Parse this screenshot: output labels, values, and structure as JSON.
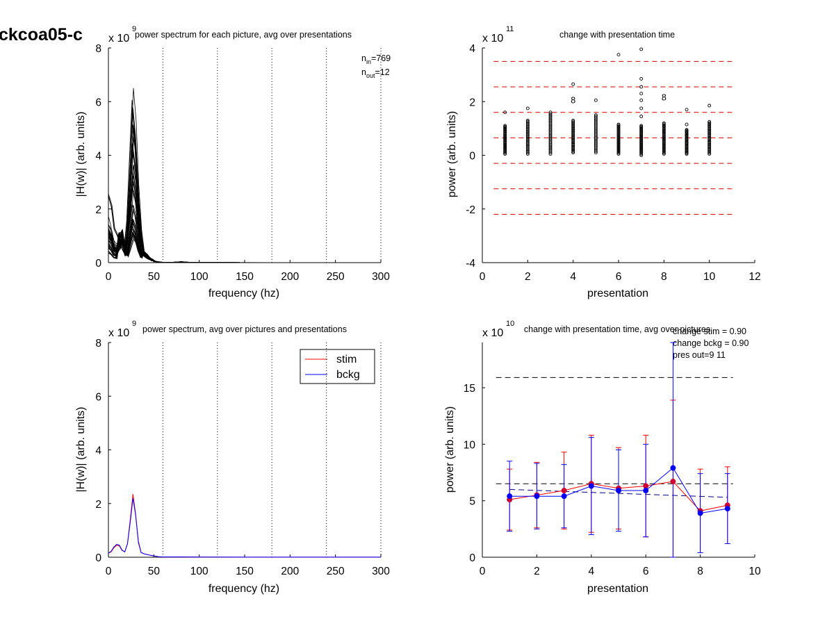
{
  "figure_label": "ckcoa05-c",
  "chart_data": [
    {
      "id": "p1",
      "type": "line",
      "title": "power spectrum for each picture, avg over presentations",
      "xlabel": "frequency (hz)",
      "ylabel": "|H(w)| (arb. units)",
      "y_exponent": "9",
      "xlim": [
        0,
        300
      ],
      "ylim": [
        0,
        8
      ],
      "xticks": [
        "0",
        "50",
        "100",
        "150",
        "200",
        "250",
        "300"
      ],
      "yticks": [
        "0",
        "2",
        "4",
        "6",
        "8"
      ],
      "vlines_x": [
        60,
        120,
        180,
        240,
        300
      ],
      "annotations": {
        "n_in": "769",
        "n_out": "12"
      },
      "curves": {
        "count": 40,
        "base_x": [
          0,
          3,
          6,
          9,
          12,
          15,
          18,
          21,
          24,
          27,
          30,
          33,
          36,
          39,
          42,
          45,
          48,
          51,
          54,
          57,
          60,
          65,
          70,
          75,
          80,
          90,
          100,
          150,
          200,
          250,
          300
        ],
        "base_y": [
          1.2,
          1.0,
          0.6,
          0.5,
          0.8,
          0.9,
          0.4,
          0.8,
          2.0,
          3.2,
          2.6,
          1.4,
          0.6,
          0.35,
          0.25,
          0.15,
          0.1,
          0.05,
          0.03,
          0.02,
          0.01,
          0.01,
          0.01,
          0.02,
          0.03,
          0.01,
          0.005,
          0.003,
          0.002,
          0.001,
          0.001
        ],
        "peak_max": 6.2,
        "low_max": 2.8
      }
    },
    {
      "id": "p2",
      "type": "scatter",
      "title": "change with presentation time",
      "xlabel": "presentation",
      "ylabel": "power (arb. units)",
      "y_exponent": "11",
      "xlim": [
        0,
        12
      ],
      "ylim": [
        -4,
        4
      ],
      "xticks": [
        "0",
        "2",
        "4",
        "6",
        "8",
        "10",
        "12"
      ],
      "yticks": [
        "-4",
        "-2",
        "0",
        "2",
        "4"
      ],
      "hlines_y": [
        3.5,
        2.55,
        1.6,
        0.65,
        -0.3,
        -1.25,
        -2.2
      ],
      "columns": [
        {
          "x": 1,
          "low": 0.05,
          "high": 1.1,
          "outliers": [
            1.6
          ]
        },
        {
          "x": 2,
          "low": 0.05,
          "high": 1.3,
          "outliers": [
            1.75
          ]
        },
        {
          "x": 3,
          "low": 0.05,
          "high": 1.6,
          "outliers": []
        },
        {
          "x": 4,
          "low": 0.1,
          "high": 1.3,
          "outliers": [
            2.65
          ]
        },
        {
          "x": 5,
          "low": 0.1,
          "high": 1.5,
          "outliers": [
            2.05
          ]
        },
        {
          "x": 6,
          "low": 0.05,
          "high": 1.15,
          "outliers": [
            3.75
          ]
        },
        {
          "x": 7,
          "low": 0.05,
          "high": 1.1,
          "outliers": [
            1.45,
            1.75,
            2.05,
            2.3,
            2.55,
            2.85,
            3.95,
            0.0
          ]
        },
        {
          "x": 8,
          "low": 0.05,
          "high": 1.2,
          "outliers": []
        },
        {
          "x": 9,
          "low": 0.05,
          "high": 0.95,
          "outliers": [
            1.15,
            1.7
          ]
        },
        {
          "x": 10,
          "low": 0.05,
          "high": 1.25,
          "outliers": [
            1.85
          ]
        }
      ],
      "text_marks": [
        {
          "x": 4,
          "y": 2.05,
          "text": "8"
        },
        {
          "x": 8,
          "y": 2.15,
          "text": "8"
        }
      ]
    },
    {
      "id": "p3",
      "type": "line",
      "title": "power spectrum, avg over pictures and presentations",
      "xlabel": "frequency (hz)",
      "ylabel": "|H(w)| (arb. units)",
      "y_exponent": "9",
      "xlim": [
        0,
        300
      ],
      "ylim": [
        0,
        8
      ],
      "xticks": [
        "0",
        "50",
        "100",
        "150",
        "200",
        "250",
        "300"
      ],
      "yticks": [
        "0",
        "2",
        "4",
        "6",
        "8"
      ],
      "vlines_x": [
        60,
        120,
        180,
        240,
        300
      ],
      "legend": {
        "position": "top-right",
        "entries": [
          "stim",
          "bckg"
        ]
      },
      "series": [
        {
          "name": "stim",
          "color": "#ff0000",
          "x": [
            0,
            3,
            6,
            9,
            12,
            15,
            18,
            21,
            24,
            27,
            30,
            33,
            36,
            40,
            45,
            50,
            55,
            60,
            80,
            100,
            150,
            200,
            250,
            300
          ],
          "y": [
            0.15,
            0.2,
            0.35,
            0.45,
            0.42,
            0.25,
            0.2,
            0.5,
            1.4,
            2.35,
            1.6,
            0.6,
            0.18,
            0.12,
            0.08,
            0.05,
            0.02,
            0.01,
            0.01,
            0.005,
            0.003,
            0.002,
            0.002,
            0.002
          ]
        },
        {
          "name": "bckg",
          "color": "#0000ff",
          "x": [
            0,
            3,
            6,
            9,
            12,
            15,
            18,
            21,
            24,
            27,
            30,
            33,
            36,
            40,
            45,
            50,
            55,
            60,
            80,
            100,
            150,
            200,
            250,
            300
          ],
          "y": [
            0.15,
            0.22,
            0.38,
            0.48,
            0.45,
            0.27,
            0.2,
            0.5,
            1.3,
            2.2,
            1.55,
            0.55,
            0.17,
            0.12,
            0.08,
            0.05,
            0.02,
            0.01,
            0.01,
            0.005,
            0.003,
            0.002,
            0.002,
            0.002
          ]
        }
      ]
    },
    {
      "id": "p4",
      "type": "line",
      "title": "change with presentation time, avg over pictures",
      "xlabel": "presentation",
      "ylabel": "power (arb. units)",
      "y_exponent": "10",
      "xlim": [
        0,
        10
      ],
      "ylim": [
        0,
        19
      ],
      "xticks": [
        "0",
        "2",
        "4",
        "6",
        "8",
        "10"
      ],
      "yticks": [
        "0",
        "5",
        "10",
        "15"
      ],
      "annotations": [
        "change stim = 0.90",
        "change bckg = 0.90",
        "pres out=9 11"
      ],
      "hlines": [
        {
          "y": 15.9,
          "x1": 0.5,
          "x2": 9.2,
          "color": "#000000"
        },
        {
          "y": 6.5,
          "x1": 0.5,
          "x2": 9.2,
          "color": "#000000"
        }
      ],
      "trend_line": {
        "x": [
          1,
          9
        ],
        "y": [
          6.0,
          5.3
        ],
        "color": "#000080"
      },
      "series": [
        {
          "name": "stim",
          "color": "#ff0000",
          "marker_color": "#cc0033",
          "x": [
            1,
            2,
            3,
            4,
            5,
            6,
            7,
            8,
            9
          ],
          "y": [
            5.1,
            5.5,
            5.9,
            6.5,
            6.1,
            6.3,
            6.7,
            4.1,
            4.6
          ],
          "err": [
            2.7,
            2.9,
            3.4,
            4.3,
            3.6,
            4.5,
            7.2,
            3.7,
            3.4
          ]
        },
        {
          "name": "bckg",
          "color": "#0000ff",
          "marker_color": "#0000ff",
          "x": [
            1,
            2,
            3,
            4,
            5,
            6,
            7,
            8,
            9
          ],
          "y": [
            5.4,
            5.4,
            5.4,
            6.3,
            5.9,
            5.9,
            7.9,
            3.9,
            4.3
          ],
          "err": [
            3.1,
            2.9,
            2.8,
            4.3,
            3.6,
            4.1,
            11.5,
            3.5,
            3.1
          ]
        }
      ]
    }
  ]
}
